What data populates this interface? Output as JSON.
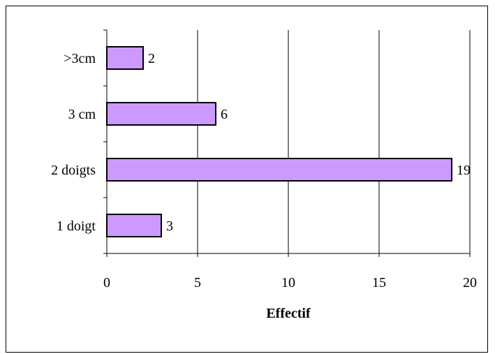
{
  "chart_data": {
    "type": "bar",
    "orientation": "horizontal",
    "categories": [
      "1 doigt",
      "2 doigts",
      "3 cm",
      ">3cm"
    ],
    "values": [
      3,
      19,
      6,
      2
    ],
    "data_labels": [
      "3",
      "19",
      "6",
      "2"
    ],
    "title": "",
    "xlabel": "Effectif",
    "ylabel": "",
    "xlim": [
      0,
      20
    ],
    "x_ticks": [
      "0",
      "5",
      "10",
      "15",
      "20"
    ],
    "grid": "vertical",
    "legend": "none",
    "colors": {
      "bar_fill": "#CC99FF",
      "bar_stroke": "#000000",
      "gridline": "#000000"
    }
  }
}
